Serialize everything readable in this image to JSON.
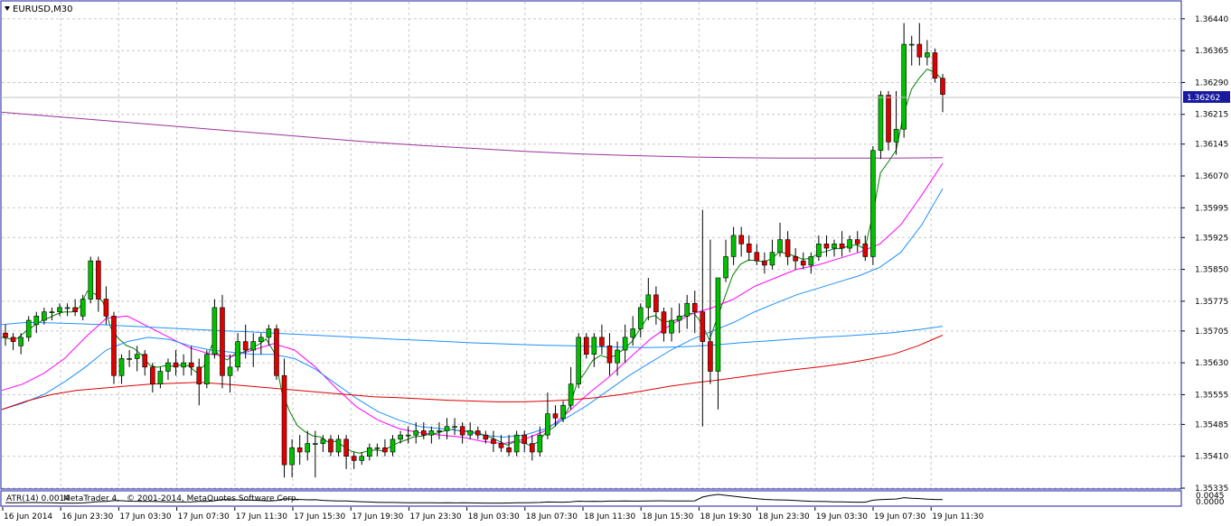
{
  "window": {
    "symbol_label": "EURUSD,M30",
    "copyright": "© 2001-2014, MetaQuotes Software Corp.",
    "watermark_prefix": "MetaTrader 4,",
    "current_price": "1.36262",
    "arrow_icon": "triangle-down-icon"
  },
  "indicator": {
    "label": "ATR(14) 0.0014",
    "value_top": "0.0045",
    "value_bottom": "0.0000"
  },
  "colors": {
    "background": "#ffffff",
    "grid": "#c8c8c8",
    "frame": "#1a1aa0",
    "bull": "#00c000",
    "bear": "#e00000",
    "ma_fast": "#008000",
    "ma_mid": "#ff00ff",
    "ma_slow": "#1e90ff",
    "ma_long_blue": "#1e90ff",
    "ma_long_red": "#dd0000",
    "ma_purple": "#993399",
    "current_price_bg": "#1a1aa0"
  },
  "chart_data": {
    "type": "candlestick",
    "symbol": "EURUSD",
    "timeframe": "M30",
    "ylim": [
      1.35335,
      1.3648
    ],
    "y_ticks": [
      "1.36440",
      "1.36365",
      "1.36290",
      "1.36215",
      "1.36145",
      "1.36070",
      "1.35995",
      "1.35925",
      "1.35850",
      "1.35775",
      "1.35705",
      "1.35630",
      "1.35555",
      "1.35485",
      "1.35410",
      "1.35335"
    ],
    "x_ticks": [
      "16 Jun 2014",
      "16 Jun 23:30",
      "17 Jun 03:30",
      "17 Jun 07:30",
      "17 Jun 11:30",
      "17 Jun 15:30",
      "17 Jun 19:30",
      "17 Jun 23:30",
      "18 Jun 03:30",
      "18 Jun 07:30",
      "18 Jun 11:30",
      "18 Jun 15:30",
      "18 Jun 19:30",
      "18 Jun 23:30",
      "19 Jun 03:30",
      "19 Jun 07:30",
      "19 Jun 11:30"
    ],
    "grid": true,
    "candles": [
      [
        1.357,
        1.3572,
        1.3567,
        1.3569
      ],
      [
        1.3569,
        1.357,
        1.3566,
        1.3568
      ],
      [
        1.3567,
        1.357,
        1.3565,
        1.3569
      ],
      [
        1.3569,
        1.3574,
        1.3568,
        1.3573
      ],
      [
        1.3572,
        1.3575,
        1.357,
        1.3574
      ],
      [
        1.3573,
        1.3576,
        1.3572,
        1.3575
      ],
      [
        1.3575,
        1.3576,
        1.3573,
        1.3575
      ],
      [
        1.3575,
        1.3577,
        1.3574,
        1.3576
      ],
      [
        1.3576,
        1.3577,
        1.3574,
        1.3576
      ],
      [
        1.3576,
        1.3578,
        1.3574,
        1.3575
      ],
      [
        1.3574,
        1.3579,
        1.3573,
        1.3578
      ],
      [
        1.3578,
        1.3588,
        1.3577,
        1.3587
      ],
      [
        1.3587,
        1.3588,
        1.3575,
        1.3578
      ],
      [
        1.3578,
        1.3581,
        1.3572,
        1.3574
      ],
      [
        1.3574,
        1.3575,
        1.3558,
        1.356
      ],
      [
        1.356,
        1.3565,
        1.3558,
        1.3564
      ],
      [
        1.3564,
        1.3566,
        1.3562,
        1.3564
      ],
      [
        1.3564,
        1.3567,
        1.3561,
        1.3565
      ],
      [
        1.3565,
        1.3566,
        1.356,
        1.3562
      ],
      [
        1.3562,
        1.3563,
        1.3556,
        1.3558
      ],
      [
        1.3558,
        1.3562,
        1.3557,
        1.3561
      ],
      [
        1.3561,
        1.3564,
        1.3559,
        1.3563
      ],
      [
        1.3563,
        1.3566,
        1.356,
        1.3562
      ],
      [
        1.3562,
        1.3565,
        1.356,
        1.3563
      ],
      [
        1.3563,
        1.3567,
        1.356,
        1.3562
      ],
      [
        1.3562,
        1.3564,
        1.3553,
        1.3558
      ],
      [
        1.3558,
        1.3566,
        1.3557,
        1.3565
      ],
      [
        1.3565,
        1.3578,
        1.3564,
        1.3576
      ],
      [
        1.3576,
        1.3579,
        1.3557,
        1.356
      ],
      [
        1.356,
        1.3565,
        1.3556,
        1.3562
      ],
      [
        1.3562,
        1.357,
        1.3561,
        1.3568
      ],
      [
        1.3568,
        1.3572,
        1.3564,
        1.3566
      ],
      [
        1.3566,
        1.357,
        1.3562,
        1.3568
      ],
      [
        1.3568,
        1.357,
        1.3565,
        1.3569
      ],
      [
        1.3569,
        1.3572,
        1.3567,
        1.3571
      ],
      [
        1.3571,
        1.3572,
        1.3559,
        1.356
      ],
      [
        1.356,
        1.3564,
        1.3536,
        1.3539
      ],
      [
        1.3539,
        1.3545,
        1.3536,
        1.3543
      ],
      [
        1.3543,
        1.3546,
        1.3539,
        1.3542
      ],
      [
        1.3542,
        1.3547,
        1.354,
        1.3544
      ],
      [
        1.3544,
        1.3547,
        1.3536,
        1.3544
      ],
      [
        1.3544,
        1.3546,
        1.3542,
        1.3545
      ],
      [
        1.3545,
        1.3546,
        1.3541,
        1.3542
      ],
      [
        1.3542,
        1.3546,
        1.3541,
        1.3545
      ],
      [
        1.3545,
        1.3546,
        1.3538,
        1.3541
      ],
      [
        1.3541,
        1.3542,
        1.3538,
        1.354
      ],
      [
        1.354,
        1.3542,
        1.3539,
        1.3541
      ],
      [
        1.3541,
        1.3544,
        1.354,
        1.3543
      ],
      [
        1.3543,
        1.3544,
        1.3541,
        1.3543
      ],
      [
        1.3543,
        1.3545,
        1.3541,
        1.3542
      ],
      [
        1.3542,
        1.3546,
        1.3541,
        1.3545
      ],
      [
        1.3545,
        1.3547,
        1.3544,
        1.3546
      ],
      [
        1.3546,
        1.3548,
        1.3544,
        1.3546
      ],
      [
        1.3546,
        1.3549,
        1.3544,
        1.3547
      ],
      [
        1.3547,
        1.3549,
        1.3545,
        1.3546
      ],
      [
        1.3546,
        1.3548,
        1.3544,
        1.3547
      ],
      [
        1.3547,
        1.3549,
        1.3545,
        1.3547
      ],
      [
        1.3547,
        1.355,
        1.3545,
        1.3548
      ],
      [
        1.3548,
        1.355,
        1.3546,
        1.3548
      ],
      [
        1.3548,
        1.3549,
        1.3544,
        1.3546
      ],
      [
        1.3546,
        1.3549,
        1.3545,
        1.3547
      ],
      [
        1.3547,
        1.3548,
        1.3545,
        1.3546
      ],
      [
        1.3546,
        1.3547,
        1.3544,
        1.3545
      ],
      [
        1.3545,
        1.3547,
        1.3542,
        1.3544
      ],
      [
        1.3544,
        1.3546,
        1.3542,
        1.3543
      ],
      [
        1.3543,
        1.3546,
        1.3541,
        1.3542
      ],
      [
        1.3542,
        1.3547,
        1.3541,
        1.3546
      ],
      [
        1.3546,
        1.3547,
        1.3542,
        1.3544
      ],
      [
        1.3544,
        1.3546,
        1.354,
        1.3542
      ],
      [
        1.3542,
        1.3548,
        1.3541,
        1.3546
      ],
      [
        1.3546,
        1.3556,
        1.3545,
        1.3551
      ],
      [
        1.3551,
        1.3553,
        1.3548,
        1.355
      ],
      [
        1.355,
        1.3554,
        1.3549,
        1.3553
      ],
      [
        1.3553,
        1.3562,
        1.3552,
        1.3558
      ],
      [
        1.3558,
        1.357,
        1.3557,
        1.3569
      ],
      [
        1.3569,
        1.357,
        1.3564,
        1.3565
      ],
      [
        1.3565,
        1.357,
        1.3562,
        1.3569
      ],
      [
        1.3569,
        1.3572,
        1.3565,
        1.3567
      ],
      [
        1.3567,
        1.357,
        1.356,
        1.3563
      ],
      [
        1.3563,
        1.3568,
        1.356,
        1.3566
      ],
      [
        1.3566,
        1.3572,
        1.3563,
        1.3569
      ],
      [
        1.3569,
        1.3574,
        1.3567,
        1.3571
      ],
      [
        1.3571,
        1.3577,
        1.3569,
        1.3576
      ],
      [
        1.3576,
        1.3583,
        1.3573,
        1.3579
      ],
      [
        1.3579,
        1.3581,
        1.3572,
        1.3575
      ],
      [
        1.3575,
        1.3576,
        1.3568,
        1.357
      ],
      [
        1.357,
        1.3576,
        1.3568,
        1.3573
      ],
      [
        1.3573,
        1.3577,
        1.357,
        1.3574
      ],
      [
        1.3574,
        1.3579,
        1.3571,
        1.3577
      ],
      [
        1.3577,
        1.358,
        1.357,
        1.3575
      ],
      [
        1.3575,
        1.3599,
        1.3548,
        1.3568
      ],
      [
        1.3568,
        1.3592,
        1.3558,
        1.3561
      ],
      [
        1.3561,
        1.3582,
        1.3552,
        1.3583
      ],
      [
        1.3583,
        1.3592,
        1.3582,
        1.3588
      ],
      [
        1.3588,
        1.3595,
        1.3586,
        1.3593
      ],
      [
        1.3593,
        1.3595,
        1.3588,
        1.3591
      ],
      [
        1.3591,
        1.3593,
        1.3587,
        1.3589
      ],
      [
        1.3589,
        1.3591,
        1.3586,
        1.3587
      ],
      [
        1.3587,
        1.3589,
        1.3584,
        1.3586
      ],
      [
        1.3586,
        1.3592,
        1.3585,
        1.3589
      ],
      [
        1.3589,
        1.3596,
        1.3588,
        1.3592
      ],
      [
        1.3592,
        1.3594,
        1.3586,
        1.3588
      ],
      [
        1.3588,
        1.359,
        1.3585,
        1.3587
      ],
      [
        1.3587,
        1.3589,
        1.3585,
        1.3586
      ],
      [
        1.3586,
        1.3589,
        1.3584,
        1.3588
      ],
      [
        1.3588,
        1.3593,
        1.3587,
        1.3591
      ],
      [
        1.3591,
        1.3593,
        1.3588,
        1.359
      ],
      [
        1.359,
        1.3592,
        1.3588,
        1.3591
      ],
      [
        1.3591,
        1.3594,
        1.3588,
        1.359
      ],
      [
        1.359,
        1.3593,
        1.3589,
        1.3592
      ],
      [
        1.3592,
        1.3594,
        1.3589,
        1.3591
      ],
      [
        1.3591,
        1.3593,
        1.3587,
        1.3588
      ],
      [
        1.3588,
        1.3614,
        1.3586,
        1.3613
      ],
      [
        1.3613,
        1.3627,
        1.3611,
        1.3626
      ],
      [
        1.3626,
        1.3627,
        1.3613,
        1.3615
      ],
      [
        1.3615,
        1.3627,
        1.3612,
        1.3618
      ],
      [
        1.3618,
        1.3643,
        1.3616,
        1.3638
      ],
      [
        1.3638,
        1.364,
        1.3633,
        1.3638
      ],
      [
        1.3638,
        1.3643,
        1.3633,
        1.3635
      ],
      [
        1.3635,
        1.3639,
        1.3633,
        1.3636
      ],
      [
        1.3636,
        1.3637,
        1.3629,
        1.363
      ],
      [
        1.363,
        1.3631,
        1.3622,
        1.36262
      ]
    ],
    "series": [
      {
        "values_start": [
          1.3565,
          1.3624
        ],
        "values_end": [
          1.3622,
          1.3638
        ]
      },
      {
        "values": [
          1.35565,
          1.3558,
          1.35605,
          1.3564,
          1.3569,
          1.35735,
          1.3574,
          1.35715,
          1.3569,
          1.35665,
          1.3565,
          1.35645,
          1.3566,
          1.35675,
          1.3566,
          1.3562,
          1.3557,
          1.35525,
          1.35495,
          1.35475,
          1.35465,
          1.3546,
          1.35455,
          1.35445,
          1.3544,
          1.3545,
          1.3547,
          1.3551,
          1.35555,
          1.35595,
          1.3564,
          1.35685,
          1.3572,
          1.35745,
          1.3576,
          1.3578,
          1.3581,
          1.3583,
          1.3585,
          1.3586,
          1.35875,
          1.3589,
          1.3591,
          1.35955,
          1.36025,
          1.361
        ]
      },
      {
        "values": [
          1.3552,
          1.35535,
          1.35555,
          1.35585,
          1.3562,
          1.3566,
          1.3568,
          1.3569,
          1.35685,
          1.3567,
          1.3566,
          1.35655,
          1.3565,
          1.3565,
          1.3564,
          1.35615,
          1.3558,
          1.35545,
          1.35515,
          1.35495,
          1.3548,
          1.35475,
          1.3547,
          1.3546,
          1.35455,
          1.3546,
          1.35475,
          1.355,
          1.3553,
          1.35565,
          1.356,
          1.3563,
          1.3566,
          1.35685,
          1.35705,
          1.35725,
          1.3575,
          1.3577,
          1.3579,
          1.35805,
          1.3582,
          1.35835,
          1.35855,
          1.3589,
          1.35955,
          1.3604
        ]
      },
      {
        "values": [
          1.3572,
          1.35725,
          1.35724,
          1.35722,
          1.3572,
          1.35717,
          1.35714,
          1.35711,
          1.35708,
          1.35705,
          1.35703,
          1.357,
          1.35697,
          1.35694,
          1.35691,
          1.35688,
          1.35685,
          1.35683,
          1.3568,
          1.35677,
          1.35675,
          1.35673,
          1.35671,
          1.3567,
          1.35668,
          1.35667,
          1.35666,
          1.35667,
          1.35669,
          1.35673,
          1.35678,
          1.35682,
          1.35686,
          1.3569,
          1.35693,
          1.35697,
          1.35701,
          1.35708,
          1.35716
        ]
      },
      {
        "values": [
          1.3552,
          1.3554,
          1.35555,
          1.35565,
          1.3557,
          1.35575,
          1.3558,
          1.35582,
          1.35584,
          1.3558,
          1.35575,
          1.3557,
          1.35565,
          1.3556,
          1.35555,
          1.3555,
          1.35548,
          1.35545,
          1.35542,
          1.3554,
          1.35538,
          1.35538,
          1.3554,
          1.35543,
          1.35548,
          1.35555,
          1.35565,
          1.35575,
          1.35583,
          1.3559,
          1.35598,
          1.35606,
          1.35614,
          1.3562,
          1.35628,
          1.35638,
          1.3565,
          1.3567,
          1.35695
        ]
      },
      {
        "values": [
          1.3622,
          1.3621,
          1.362,
          1.3619,
          1.3618,
          1.3617,
          1.3616,
          1.3615,
          1.36142,
          1.36135,
          1.36128,
          1.36122,
          1.36118,
          1.36115,
          1.36113,
          1.36112,
          1.36112,
          1.36112,
          1.36113
        ]
      }
    ]
  }
}
